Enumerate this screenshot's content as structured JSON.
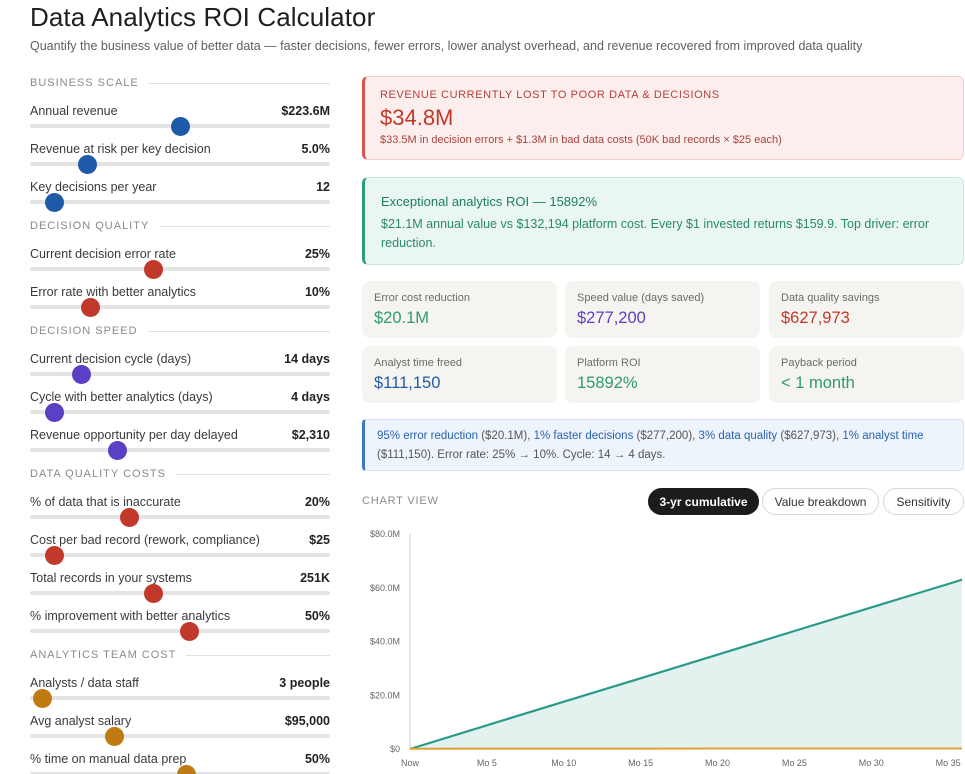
{
  "header": {
    "title": "Data Analytics ROI Calculator",
    "subtitle": "Quantify the business value of better data — faster decisions, fewer errors, lower analyst overhead, and revenue recovered from improved data quality"
  },
  "sections": {
    "business_scale": "BUSINESS SCALE",
    "decision_quality": "DECISION QUALITY",
    "decision_speed": "DECISION SPEED",
    "data_quality_costs": "DATA QUALITY COSTS",
    "analytics_team_cost": "ANALYTICS TEAM COST"
  },
  "sliders": [
    {
      "label": "Annual revenue",
      "value": "$223.6M",
      "level": 0.5,
      "color": "#1e5aa8"
    },
    {
      "label": "Revenue at risk per key decision",
      "value": "5.0%",
      "level": 0.19,
      "color": "#1e5aa8"
    },
    {
      "label": "Key decisions per year",
      "value": "12",
      "level": 0.08,
      "color": "#1e5aa8"
    },
    {
      "label": "Current decision error rate",
      "value": "25%",
      "level": 0.41,
      "color": "#c0392b"
    },
    {
      "label": "Error rate with better analytics",
      "value": "10%",
      "level": 0.2,
      "color": "#c0392b"
    },
    {
      "label": "Current decision cycle (days)",
      "value": "14 days",
      "level": 0.17,
      "color": "#5b3fc4"
    },
    {
      "label": "Cycle with better analytics (days)",
      "value": "4 days",
      "level": 0.08,
      "color": "#5b3fc4"
    },
    {
      "label": "Revenue opportunity per day delayed",
      "value": "$2,310",
      "level": 0.29,
      "color": "#5b3fc4"
    },
    {
      "label": "% of data that is inaccurate",
      "value": "20%",
      "level": 0.33,
      "color": "#c0392b"
    },
    {
      "label": "Cost per bad record (rework, compliance)",
      "value": "$25",
      "level": 0.08,
      "color": "#c0392b"
    },
    {
      "label": "Total records in your systems",
      "value": "251K",
      "level": 0.41,
      "color": "#c0392b"
    },
    {
      "label": "% improvement with better analytics",
      "value": "50%",
      "level": 0.53,
      "color": "#c0392b"
    },
    {
      "label": "Analysts / data staff",
      "value": "3 people",
      "level": 0.04,
      "color": "#c07a12"
    },
    {
      "label": "Avg analyst salary",
      "value": "$95,000",
      "level": 0.28,
      "color": "#c07a12"
    },
    {
      "label": "% time on manual data prep",
      "value": "50%",
      "level": 0.52,
      "color": "#c07a12"
    }
  ],
  "lost_alert": {
    "kicker": "REVENUE CURRENTLY LOST TO POOR DATA & DECISIONS",
    "amount": "$34.8M",
    "detail": "$33.5M in decision errors + $1.3M in bad data costs (50K bad records × $25 each)"
  },
  "roi_alert": {
    "heading": "Exceptional analytics ROI — 15892%",
    "body": "$21.1M annual value vs $132,194 platform cost. Every $1 invested returns $159.9. Top driver: error reduction."
  },
  "metrics": [
    {
      "label": "Error cost reduction",
      "value": "$20.1M",
      "color": "#2e9b6e"
    },
    {
      "label": "Speed value (days saved)",
      "value": "$277,200",
      "color": "#5b3fc4"
    },
    {
      "label": "Data quality savings",
      "value": "$627,973",
      "color": "#c0392b"
    },
    {
      "label": "Analyst time freed",
      "value": "$111,150",
      "color": "#1e5aa8"
    },
    {
      "label": "Platform ROI",
      "value": "15892%",
      "color": "#2e9b6e"
    },
    {
      "label": "Payback period",
      "value": "< 1 month",
      "color": "#2e9b6e"
    }
  ],
  "info": {
    "hl1": "95% error reduction",
    "t1": " ($20.1M), ",
    "hl2": "1% faster decisions",
    "t2": " ($277,200), ",
    "hl3": "3% data quality",
    "t3": " ($627,973), ",
    "hl4": "1% analyst time",
    "t4": " ($111,150). Error rate: 25% → 10%. Cycle: 14 → 4 days."
  },
  "chart_view": {
    "label": "CHART VIEW",
    "tabs": [
      "3-yr cumulative",
      "Value breakdown",
      "Sensitivity"
    ],
    "active_tab": 0
  },
  "chart_data": {
    "type": "area",
    "x": [
      "Now",
      "Mo 5",
      "Mo 10",
      "Mo 15",
      "Mo 20",
      "Mo 25",
      "Mo 30",
      "Mo 35"
    ],
    "x_numeric": [
      0,
      5,
      10,
      15,
      20,
      25,
      30,
      35
    ],
    "ylim": [
      0,
      80
    ],
    "y_ticks": [
      "$0",
      "$20.0M",
      "$40.0M",
      "$60.0M",
      "$80.0M"
    ],
    "series": [
      {
        "color": "#2a9a8a",
        "fill": "#e3f1ef",
        "values": [
          0,
          8.8,
          17.6,
          26.3,
          35.1,
          43.9,
          52.7,
          61.4
        ],
        "x_end": 35.9,
        "y_end": 63.0
      },
      {
        "color": "#e0a030",
        "values": [
          0.13,
          0.14,
          0.15,
          0.16,
          0.17,
          0.18,
          0.19,
          0.2
        ],
        "x_end": 35.9,
        "y_end": 0.2
      }
    ]
  }
}
